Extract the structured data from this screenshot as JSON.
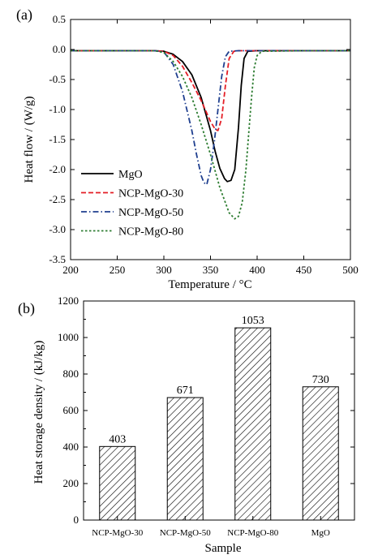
{
  "chart_data": [
    {
      "panel_label": "(a)",
      "type": "line",
      "xlabel": "Temperature / °C",
      "ylabel": "Heat flow / (W/g)",
      "xlim": [
        200,
        500
      ],
      "ylim": [
        -3.5,
        0.5
      ],
      "xticks": [
        "200",
        "250",
        "300",
        "350",
        "400",
        "450",
        "500"
      ],
      "yticks": [
        "-3.5",
        "-3.0",
        "-2.5",
        "-2.0",
        "-1.5",
        "-1.0",
        "-0.5",
        "0.0",
        "0.5"
      ],
      "legend_position": "bottom-left",
      "grid": false,
      "series": [
        {
          "name": "MgO",
          "color": "#000000",
          "dash": "solid",
          "x": [
            200,
            290,
            300,
            310,
            320,
            330,
            340,
            350,
            355,
            360,
            365,
            368,
            372,
            376,
            380,
            383,
            386,
            390,
            400,
            450,
            500
          ],
          "y": [
            -0.02,
            -0.02,
            -0.03,
            -0.08,
            -0.2,
            -0.42,
            -0.8,
            -1.35,
            -1.7,
            -1.98,
            -2.15,
            -2.2,
            -2.18,
            -2.0,
            -1.3,
            -0.6,
            -0.15,
            -0.03,
            -0.02,
            -0.02,
            -0.02
          ]
        },
        {
          "name": "NCP-MgO-30",
          "color": "#e41e26",
          "dash": "dashed",
          "x": [
            200,
            290,
            300,
            310,
            320,
            330,
            340,
            350,
            355,
            358,
            362,
            366,
            370,
            375,
            380,
            400,
            450,
            500
          ],
          "y": [
            -0.02,
            -0.02,
            -0.03,
            -0.1,
            -0.28,
            -0.55,
            -0.85,
            -1.2,
            -1.33,
            -1.35,
            -1.15,
            -0.6,
            -0.15,
            -0.03,
            -0.02,
            -0.02,
            -0.02,
            -0.02
          ]
        },
        {
          "name": "NCP-MgO-50",
          "color": "#1f3f8f",
          "dash": "dashdot",
          "x": [
            200,
            290,
            300,
            310,
            320,
            330,
            335,
            340,
            343,
            346,
            350,
            354,
            358,
            362,
            366,
            370,
            380,
            450,
            500
          ],
          "y": [
            -0.02,
            -0.02,
            -0.04,
            -0.25,
            -0.7,
            -1.35,
            -1.75,
            -2.1,
            -2.22,
            -2.25,
            -2.0,
            -1.55,
            -1.0,
            -0.45,
            -0.12,
            -0.03,
            -0.02,
            -0.02,
            -0.02
          ]
        },
        {
          "name": "NCP-MgO-80",
          "color": "#2e7d32",
          "dash": "dotted",
          "x": [
            200,
            290,
            300,
            310,
            320,
            330,
            340,
            350,
            360,
            370,
            376,
            380,
            384,
            388,
            391,
            394,
            397,
            400,
            405,
            450,
            500
          ],
          "y": [
            -0.02,
            -0.02,
            -0.05,
            -0.2,
            -0.45,
            -0.8,
            -1.25,
            -1.75,
            -2.3,
            -2.72,
            -2.82,
            -2.78,
            -2.55,
            -2.0,
            -1.4,
            -0.8,
            -0.3,
            -0.1,
            -0.03,
            -0.02,
            -0.02
          ]
        }
      ]
    },
    {
      "panel_label": "(b)",
      "type": "bar",
      "xlabel": "Sample",
      "ylabel": "Heat storage density / (kJ/kg)",
      "categories": [
        "NCP-MgO-30",
        "NCP-MgO-50",
        "NCP-MgO-80",
        "MgO"
      ],
      "values": [
        403,
        671,
        1053,
        730
      ],
      "data_labels": [
        "403",
        "671",
        "1053",
        "730"
      ],
      "ylim": [
        0,
        1200
      ],
      "yticks": [
        "0",
        "200",
        "400",
        "600",
        "800",
        "1000",
        "1200"
      ],
      "bar_fill": "hatched",
      "grid": false
    }
  ]
}
